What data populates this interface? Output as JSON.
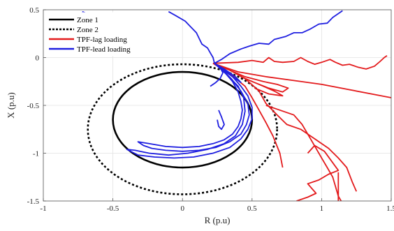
{
  "chart_data": {
    "type": "line",
    "xlabel": "R (p.u)",
    "ylabel": "X (p.u)",
    "xlim": [
      -1,
      1.5
    ],
    "ylim": [
      -1.5,
      0.5
    ],
    "xticks": [
      "-1",
      "-0.5",
      "0",
      "0.5",
      "1",
      "1.5"
    ],
    "yticks": [
      "0.5",
      "0",
      "-0.5",
      "-1",
      "-1.5"
    ],
    "grid": true,
    "legend_position": "top-left",
    "legend": [
      {
        "label": "Zone 1",
        "color": "#000000",
        "style": "solid"
      },
      {
        "label": "Zone 2",
        "color": "#000000",
        "style": "dotted"
      },
      {
        "label": "TPF-lag loading",
        "color": "#e31a1c",
        "style": "solid"
      },
      {
        "label": "TPF-lead loading",
        "color": "#1f1fe0",
        "style": "solid"
      }
    ],
    "series": [
      {
        "name": "Zone 1",
        "shape": "circle",
        "center": [
          0,
          -0.65
        ],
        "radius": 0.5,
        "color": "#000000",
        "dash": "",
        "width": 2.6
      },
      {
        "name": "Zone 2",
        "shape": "circle",
        "center": [
          0,
          -0.75
        ],
        "radius": 0.68,
        "color": "#000000",
        "dash": "3,3",
        "width": 2.6
      },
      {
        "name": "TPF-lag loading",
        "color": "#e31a1c",
        "width": 1.8,
        "segments": [
          [
            [
              0.22,
              -0.06
            ],
            [
              0.4,
              -0.05
            ],
            [
              0.5,
              -0.03
            ],
            [
              0.58,
              -0.05
            ],
            [
              0.62,
              0.0
            ],
            [
              0.66,
              -0.04
            ],
            [
              0.72,
              -0.05
            ],
            [
              0.8,
              -0.04
            ],
            [
              0.85,
              0.0
            ],
            [
              0.9,
              -0.04
            ],
            [
              0.95,
              -0.07
            ],
            [
              1.0,
              -0.05
            ],
            [
              1.06,
              -0.02
            ],
            [
              1.1,
              -0.05
            ],
            [
              1.15,
              -0.08
            ],
            [
              1.2,
              -0.07
            ],
            [
              1.26,
              -0.1
            ],
            [
              1.32,
              -0.12
            ],
            [
              1.38,
              -0.09
            ],
            [
              1.42,
              -0.04
            ],
            [
              1.45,
              0.0
            ],
            [
              1.47,
              0.02
            ]
          ],
          [
            [
              0.22,
              -0.06
            ],
            [
              0.4,
              -0.15
            ],
            [
              0.6,
              -0.2
            ],
            [
              0.8,
              -0.24
            ],
            [
              1.0,
              -0.28
            ],
            [
              1.5,
              -0.42
            ]
          ],
          [
            [
              0.22,
              -0.06
            ],
            [
              0.32,
              -0.12
            ],
            [
              0.45,
              -0.2
            ],
            [
              0.58,
              -0.25
            ],
            [
              0.68,
              -0.28
            ],
            [
              0.76,
              -0.32
            ],
            [
              0.72,
              -0.36
            ],
            [
              0.62,
              -0.32
            ],
            [
              0.5,
              -0.25
            ],
            [
              0.42,
              -0.2
            ],
            [
              0.55,
              -0.28
            ],
            [
              0.66,
              -0.35
            ],
            [
              0.72,
              -0.4
            ],
            [
              0.62,
              -0.38
            ],
            [
              0.52,
              -0.32
            ]
          ],
          [
            [
              0.22,
              -0.06
            ],
            [
              0.35,
              -0.18
            ],
            [
              0.45,
              -0.3
            ],
            [
              0.5,
              -0.42
            ],
            [
              0.55,
              -0.55
            ],
            [
              0.6,
              -0.68
            ],
            [
              0.65,
              -0.82
            ],
            [
              0.7,
              -1.0
            ],
            [
              0.72,
              -1.15
            ]
          ],
          [
            [
              0.3,
              -0.1
            ],
            [
              0.45,
              -0.22
            ],
            [
              0.55,
              -0.35
            ],
            [
              0.6,
              -0.48
            ],
            [
              0.68,
              -0.6
            ],
            [
              0.75,
              -0.7
            ],
            [
              0.85,
              -0.75
            ],
            [
              0.95,
              -0.85
            ],
            [
              1.05,
              -0.95
            ],
            [
              1.12,
              -1.05
            ],
            [
              1.18,
              -1.15
            ],
            [
              1.22,
              -1.3
            ],
            [
              1.25,
              -1.4
            ]
          ],
          [
            [
              0.6,
              -0.5
            ],
            [
              0.7,
              -0.55
            ],
            [
              0.8,
              -0.6
            ],
            [
              0.86,
              -0.7
            ],
            [
              0.92,
              -0.85
            ],
            [
              0.96,
              -0.95
            ],
            [
              1.0,
              -1.05
            ],
            [
              1.04,
              -1.15
            ],
            [
              1.08,
              -1.25
            ],
            [
              1.1,
              -1.35
            ],
            [
              1.12,
              -1.45
            ],
            [
              1.14,
              -1.5
            ]
          ],
          [
            [
              0.9,
              -1.0
            ],
            [
              0.95,
              -0.92
            ],
            [
              1.02,
              -0.98
            ],
            [
              1.08,
              -1.1
            ],
            [
              1.12,
              -1.18
            ],
            [
              1.05,
              -1.22
            ],
            [
              0.98,
              -1.28
            ],
            [
              0.9,
              -1.32
            ],
            [
              0.96,
              -1.42
            ],
            [
              0.9,
              -1.46
            ],
            [
              0.82,
              -1.5
            ]
          ],
          [
            [
              1.12,
              -1.2
            ],
            [
              1.12,
              -1.5
            ]
          ]
        ]
      },
      {
        "name": "TPF-lead loading",
        "color": "#1f1fe0",
        "width": 1.8,
        "segments": [
          [
            [
              -0.72,
              0.48
            ],
            [
              -0.65,
              0.44
            ],
            [
              -0.6,
              0.45
            ],
            [
              -0.56,
              0.43
            ],
            [
              -0.56,
              0.45
            ]
          ],
          [
            [
              -0.1,
              0.48
            ],
            [
              -0.05,
              0.44
            ],
            [
              0.02,
              0.38
            ],
            [
              0.06,
              0.32
            ],
            [
              0.1,
              0.26
            ],
            [
              0.12,
              0.2
            ],
            [
              0.14,
              0.14
            ],
            [
              0.18,
              0.1
            ],
            [
              0.2,
              0.05
            ],
            [
              0.22,
              0.0
            ],
            [
              0.23,
              -0.06
            ]
          ],
          [
            [
              0.23,
              -0.06
            ],
            [
              0.28,
              -0.02
            ],
            [
              0.34,
              0.04
            ],
            [
              0.42,
              0.09
            ],
            [
              0.48,
              0.12
            ],
            [
              0.55,
              0.15
            ],
            [
              0.62,
              0.14
            ],
            [
              0.66,
              0.19
            ],
            [
              0.74,
              0.22
            ],
            [
              0.8,
              0.26
            ],
            [
              0.86,
              0.26
            ],
            [
              0.92,
              0.3
            ],
            [
              0.98,
              0.35
            ],
            [
              1.04,
              0.36
            ],
            [
              1.08,
              0.42
            ],
            [
              1.12,
              0.46
            ],
            [
              1.15,
              0.49
            ]
          ],
          [
            [
              0.23,
              -0.06
            ],
            [
              0.3,
              -0.15
            ],
            [
              0.36,
              -0.25
            ],
            [
              0.4,
              -0.36
            ],
            [
              0.42,
              -0.46
            ],
            [
              0.43,
              -0.55
            ],
            [
              0.42,
              -0.64
            ],
            [
              0.4,
              -0.72
            ],
            [
              0.36,
              -0.8
            ],
            [
              0.3,
              -0.86
            ],
            [
              0.22,
              -0.9
            ],
            [
              0.12,
              -0.93
            ],
            [
              0.0,
              -0.94
            ],
            [
              -0.12,
              -0.93
            ],
            [
              -0.24,
              -0.9
            ],
            [
              -0.32,
              -0.88
            ],
            [
              -0.28,
              -0.92
            ],
            [
              -0.22,
              -0.95
            ],
            [
              -0.12,
              -0.97
            ],
            [
              0.0,
              -0.98
            ],
            [
              0.12,
              -0.97
            ],
            [
              0.24,
              -0.94
            ],
            [
              0.34,
              -0.88
            ],
            [
              0.42,
              -0.8
            ],
            [
              0.46,
              -0.7
            ],
            [
              0.48,
              -0.6
            ],
            [
              0.47,
              -0.48
            ],
            [
              0.42,
              -0.35
            ],
            [
              0.35,
              -0.22
            ],
            [
              0.28,
              -0.12
            ],
            [
              0.23,
              -0.06
            ]
          ],
          [
            [
              0.23,
              -0.06
            ],
            [
              0.32,
              -0.18
            ],
            [
              0.4,
              -0.3
            ],
            [
              0.44,
              -0.42
            ],
            [
              0.45,
              -0.56
            ],
            [
              0.43,
              -0.7
            ],
            [
              0.38,
              -0.82
            ],
            [
              0.3,
              -0.9
            ],
            [
              0.18,
              -0.96
            ],
            [
              0.04,
              -1.0
            ],
            [
              -0.1,
              -1.02
            ],
            [
              -0.24,
              -1.0
            ],
            [
              -0.34,
              -0.97
            ],
            [
              -0.4,
              -0.96
            ],
            [
              -0.32,
              -1.02
            ],
            [
              -0.2,
              -1.04
            ],
            [
              -0.06,
              -1.05
            ],
            [
              0.08,
              -1.04
            ],
            [
              0.22,
              -1.0
            ],
            [
              0.34,
              -0.94
            ],
            [
              0.42,
              -0.85
            ],
            [
              0.47,
              -0.75
            ],
            [
              0.5,
              -0.64
            ],
            [
              0.5,
              -0.52
            ],
            [
              0.47,
              -0.4
            ],
            [
              0.42,
              -0.3
            ],
            [
              0.36,
              -0.2
            ],
            [
              0.3,
              -0.13
            ],
            [
              0.23,
              -0.06
            ]
          ],
          [
            [
              0.23,
              -0.06
            ],
            [
              0.3,
              -0.12
            ],
            [
              0.38,
              -0.2
            ],
            [
              0.42,
              -0.26
            ],
            [
              0.36,
              -0.2
            ],
            [
              0.3,
              -0.14
            ]
          ],
          [
            [
              0.26,
              -0.55
            ],
            [
              0.28,
              -0.62
            ],
            [
              0.3,
              -0.7
            ],
            [
              0.28,
              -0.75
            ],
            [
              0.26,
              -0.72
            ],
            [
              0.25,
              -0.65
            ]
          ],
          [
            [
              0.23,
              -0.06
            ],
            [
              0.27,
              -0.1
            ],
            [
              0.29,
              -0.16
            ],
            [
              0.27,
              -0.22
            ],
            [
              0.24,
              -0.26
            ],
            [
              0.2,
              -0.3
            ]
          ]
        ]
      }
    ]
  }
}
